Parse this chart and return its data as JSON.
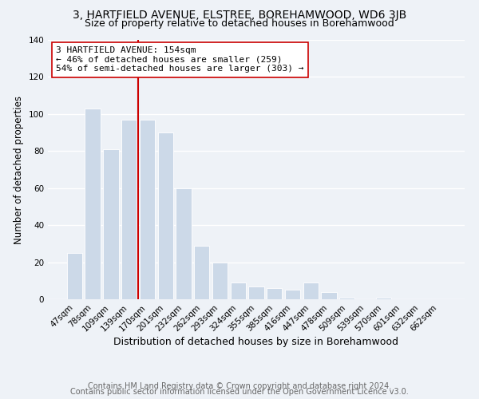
{
  "title": "3, HARTFIELD AVENUE, ELSTREE, BOREHAMWOOD, WD6 3JB",
  "subtitle": "Size of property relative to detached houses in Borehamwood",
  "xlabel": "Distribution of detached houses by size in Borehamwood",
  "ylabel": "Number of detached properties",
  "bar_labels": [
    "47sqm",
    "78sqm",
    "109sqm",
    "139sqm",
    "170sqm",
    "201sqm",
    "232sqm",
    "262sqm",
    "293sqm",
    "324sqm",
    "355sqm",
    "385sqm",
    "416sqm",
    "447sqm",
    "478sqm",
    "509sqm",
    "539sqm",
    "570sqm",
    "601sqm",
    "632sqm",
    "662sqm"
  ],
  "bar_values": [
    25,
    103,
    81,
    97,
    97,
    90,
    60,
    29,
    20,
    9,
    7,
    6,
    5,
    9,
    4,
    1,
    0,
    1,
    0,
    0,
    0
  ],
  "bar_color": "#ccd9e8",
  "bar_edge_color": "#ffffff",
  "vline_color": "#cc0000",
  "annotation_line1": "3 HARTFIELD AVENUE: 154sqm",
  "annotation_line2": "← 46% of detached houses are smaller (259)",
  "annotation_line3": "54% of semi-detached houses are larger (303) →",
  "annotation_box_color": "#ffffff",
  "annotation_box_edge": "#cc0000",
  "ylim": [
    0,
    140
  ],
  "yticks": [
    0,
    20,
    40,
    60,
    80,
    100,
    120,
    140
  ],
  "footer1": "Contains HM Land Registry data © Crown copyright and database right 2024.",
  "footer2": "Contains public sector information licensed under the Open Government Licence v3.0.",
  "background_color": "#eef2f7",
  "grid_color": "#ffffff",
  "title_fontsize": 10,
  "subtitle_fontsize": 9,
  "xlabel_fontsize": 9,
  "ylabel_fontsize": 8.5,
  "tick_fontsize": 7.5,
  "footer_fontsize": 7,
  "annotation_fontsize": 8
}
